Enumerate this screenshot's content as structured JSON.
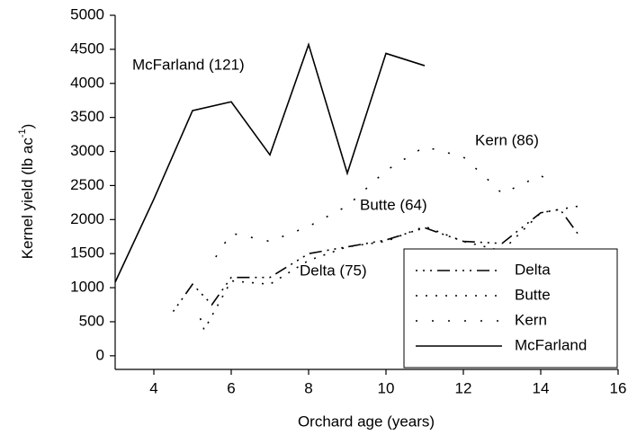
{
  "chart_data": {
    "type": "line",
    "x_label": "Orchard age (years)",
    "y_label": {
      "text": "Kernel yield (lb ac",
      "sup": "-1",
      "end": ")"
    },
    "xlim": [
      3,
      16
    ],
    "xticks": [
      4,
      6,
      8,
      10,
      12,
      14,
      16
    ],
    "ylim": [
      -200,
      5000
    ],
    "yticks": [
      0,
      500,
      1000,
      1500,
      2000,
      2500,
      3000,
      3500,
      4000,
      4500,
      5000
    ],
    "legend": "lower right",
    "series": [
      {
        "name": "Delta",
        "color": "#000000",
        "x": [
          4.5,
          5,
          5.5,
          6,
          7,
          8,
          9,
          10,
          11,
          12,
          13,
          14,
          14.5,
          15
        ],
        "values": [
          650,
          1050,
          750,
          1150,
          1150,
          1500,
          1600,
          1700,
          1880,
          1680,
          1650,
          2100,
          2150,
          1760
        ]
      },
      {
        "name": "Butte",
        "color": "#000000",
        "x": [
          5.2,
          5.3,
          6,
          7,
          8,
          9,
          10,
          11,
          12,
          13,
          14,
          15
        ],
        "values": [
          550,
          380,
          1100,
          1050,
          1400,
          1600,
          1680,
          1900,
          1680,
          1540,
          2100,
          2200
        ]
      },
      {
        "name": "Kern",
        "color": "#000000",
        "x": [
          5.6,
          6,
          7,
          8,
          9,
          10,
          11,
          12,
          12.8,
          13,
          14,
          14.2
        ],
        "values": [
          1450,
          1800,
          1680,
          1900,
          2200,
          2720,
          3070,
          2920,
          2500,
          2380,
          2650,
          2560
        ]
      },
      {
        "name": "McFarland",
        "color": "#000000",
        "x": [
          3,
          4,
          5,
          6,
          7,
          8,
          9,
          10,
          11
        ],
        "values": [
          1080,
          2300,
          3600,
          3730,
          2950,
          4570,
          2680,
          4440,
          4260
        ]
      }
    ],
    "annotations": [
      "McFarland (121)",
      "Kern (86)",
      "Butte (64)",
      "Delta (75)"
    ]
  }
}
